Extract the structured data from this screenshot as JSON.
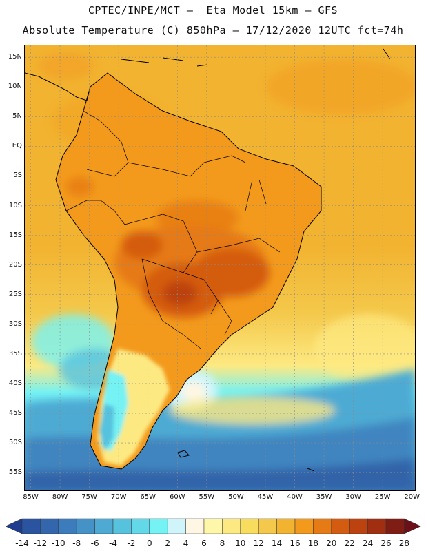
{
  "header": {
    "line1": "CPTEC/INPE/MCT –  Eta Model 15km – GFS",
    "line2": "Absolute Temperature (C) 850hPa – 17/12/2020 12UTC fct=74h"
  },
  "latitude_labels": [
    "15N",
    "10N",
    "5N",
    "EQ",
    "5S",
    "10S",
    "15S",
    "20S",
    "25S",
    "30S",
    "35S",
    "40S",
    "45S",
    "50S",
    "55S"
  ],
  "longitude_labels": [
    "85W",
    "80W",
    "75W",
    "70W",
    "65W",
    "60W",
    "55W",
    "50W",
    "45W",
    "40W",
    "35W",
    "30W",
    "25W",
    "20W"
  ],
  "colorbar": {
    "labels": [
      "-14",
      "-12",
      "-10",
      "-8",
      "-6",
      "-4",
      "-2",
      "0",
      "2",
      "4",
      "6",
      "8",
      "10",
      "12",
      "14",
      "16",
      "18",
      "20",
      "22",
      "24",
      "26",
      "28"
    ],
    "colors": [
      "#1f3d8f",
      "#2a54a0",
      "#3366ad",
      "#3d7cbc",
      "#4592c6",
      "#4eaad3",
      "#57c2de",
      "#62d8e9",
      "#75f2f4",
      "#cff5fb",
      "#fff6e3",
      "#fef6a8",
      "#fde982",
      "#f7dc5e",
      "#f4c84a",
      "#f2b330",
      "#f39a1d",
      "#e67a14",
      "#d45c10",
      "#bc4310",
      "#a02e10",
      "#7f1c14",
      "#6b1018"
    ]
  },
  "map": {
    "projection": "lat-lon",
    "lat_range": [
      -58,
      17
    ],
    "lon_range": [
      -86,
      -19.5
    ],
    "field": "Absolute Temperature (C) 850hPa"
  }
}
